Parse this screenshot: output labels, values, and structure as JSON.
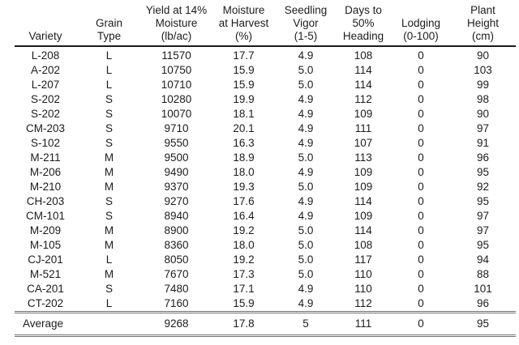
{
  "chart_data": {
    "type": "table",
    "columns": [
      "Variety",
      "Grain\nType",
      "Yield at 14%\nMoisture\n(lb/ac)",
      "Moisture\nat Harvest\n(%)",
      "Seedling\nVigor\n(1-5)",
      "Days to\n50%\nHeading",
      "Lodging\n(0-100)",
      "Plant\nHeight\n(cm)"
    ],
    "rows": [
      [
        "L-208",
        "L",
        "11570",
        "17.7",
        "4.9",
        "108",
        "0",
        "90"
      ],
      [
        "A-202",
        "L",
        "10750",
        "15.9",
        "5.0",
        "114",
        "0",
        "103"
      ],
      [
        "L-207",
        "L",
        "10710",
        "15.9",
        "5.0",
        "114",
        "0",
        "99"
      ],
      [
        "S-202",
        "S",
        "10280",
        "19.9",
        "4.9",
        "112",
        "0",
        "98"
      ],
      [
        "S-202",
        "S",
        "10070",
        "18.1",
        "4.9",
        "109",
        "0",
        "90"
      ],
      [
        "CM-203",
        "S",
        "9710",
        "20.1",
        "4.9",
        "111",
        "0",
        "97"
      ],
      [
        "S-102",
        "S",
        "9550",
        "16.3",
        "4.9",
        "107",
        "0",
        "91"
      ],
      [
        "M-211",
        "M",
        "9500",
        "18.9",
        "5.0",
        "113",
        "0",
        "96"
      ],
      [
        "M-206",
        "M",
        "9490",
        "18.0",
        "4.9",
        "109",
        "0",
        "95"
      ],
      [
        "M-210",
        "M",
        "9370",
        "19.3",
        "5.0",
        "109",
        "0",
        "92"
      ],
      [
        "CH-203",
        "S",
        "9270",
        "17.6",
        "4.9",
        "114",
        "0",
        "95"
      ],
      [
        "CM-101",
        "S",
        "8940",
        "16.4",
        "4.9",
        "109",
        "0",
        "97"
      ],
      [
        "M-209",
        "M",
        "8900",
        "19.2",
        "5.0",
        "114",
        "0",
        "97"
      ],
      [
        "M-105",
        "M",
        "8360",
        "18.0",
        "5.0",
        "108",
        "0",
        "95"
      ],
      [
        "CJ-201",
        "L",
        "8050",
        "19.2",
        "5.0",
        "117",
        "0",
        "94"
      ],
      [
        "M-521",
        "M",
        "7670",
        "17.3",
        "5.0",
        "110",
        "0",
        "88"
      ],
      [
        "CA-201",
        "S",
        "7480",
        "17.1",
        "4.9",
        "110",
        "0",
        "101"
      ],
      [
        "CT-202",
        "L",
        "7160",
        "15.9",
        "4.9",
        "112",
        "0",
        "96"
      ]
    ],
    "summary_row": [
      "Average",
      "",
      "9268",
      "17.8",
      "5",
      "111",
      "0",
      "95"
    ],
    "layout": {
      "grid": "off",
      "header_rule": "single solid under header",
      "summary_rules": "double rule above and below summary row"
    },
    "colors": {
      "background": "#ffffff",
      "text": "#1c1c1c",
      "header_rule": "#1a1a1a",
      "summary_rule": "#6f6f6f"
    }
  }
}
